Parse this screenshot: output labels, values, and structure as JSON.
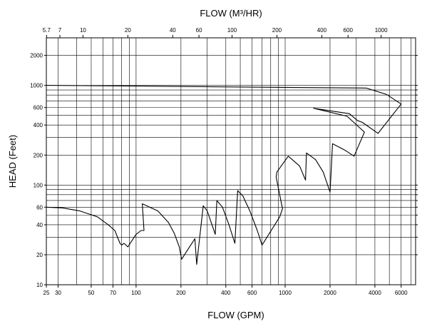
{
  "chart_data": {
    "type": "line",
    "title": "",
    "x_top_label": "FLOW (M³/HR)",
    "x_bottom_label": "FLOW (GPM)",
    "y_label": "HEAD (Feet)",
    "x_scale": "log",
    "y_scale": "log",
    "xlim": [
      25,
      7500
    ],
    "ylim": [
      10,
      3000
    ],
    "grid": true,
    "bottom_ticks": [
      "25",
      "30",
      "50",
      "70",
      "100",
      "200",
      "400",
      "600",
      "1000",
      "2000",
      "4000",
      "6000"
    ],
    "bottom_tick_values": [
      25,
      30,
      50,
      70,
      100,
      200,
      400,
      600,
      1000,
      2000,
      4000,
      6000
    ],
    "top_ticks": [
      "5.7",
      "7",
      "10",
      "20",
      "40",
      "60",
      "100",
      "200",
      "400",
      "600",
      "1000"
    ],
    "top_tick_values": [
      5.7,
      7,
      10,
      20,
      40,
      60,
      100,
      200,
      400,
      600,
      1000
    ],
    "left_ticks": [
      "10",
      "20",
      "40",
      "60",
      "100",
      "200",
      "400",
      "600",
      "1000",
      "2000"
    ],
    "left_tick_values": [
      10,
      20,
      40,
      60,
      100,
      200,
      400,
      600,
      1000,
      2000
    ],
    "series": [
      {
        "values": [
          [
            25,
            60
          ],
          [
            32,
            59
          ],
          [
            42,
            55
          ],
          [
            55,
            48
          ],
          [
            65,
            40
          ],
          [
            72,
            35
          ],
          [
            78,
            26
          ],
          [
            80,
            25
          ],
          [
            83,
            26
          ],
          [
            88,
            24
          ],
          [
            100,
            32
          ],
          [
            108,
            35
          ],
          [
            113,
            35
          ],
          [
            110,
            65
          ],
          [
            140,
            55
          ],
          [
            165,
            42
          ],
          [
            180,
            33
          ],
          [
            195,
            24
          ],
          [
            202,
            18
          ],
          [
            220,
            22
          ],
          [
            248,
            29
          ],
          [
            255,
            16
          ],
          [
            282,
            62
          ],
          [
            300,
            55
          ],
          [
            340,
            32
          ],
          [
            348,
            70
          ],
          [
            380,
            60
          ],
          [
            420,
            40
          ],
          [
            460,
            26
          ],
          [
            480,
            88
          ],
          [
            520,
            78
          ],
          [
            580,
            55
          ],
          [
            650,
            35
          ],
          [
            700,
            25
          ],
          [
            920,
            48
          ],
          [
            960,
            58
          ],
          [
            870,
            120
          ],
          [
            880,
            135
          ],
          [
            1050,
            195
          ],
          [
            1250,
            155
          ],
          [
            1370,
            112
          ],
          [
            1390,
            210
          ],
          [
            1600,
            180
          ],
          [
            1800,
            135
          ],
          [
            2000,
            85
          ],
          [
            2080,
            260
          ],
          [
            2500,
            225
          ],
          [
            2900,
            195
          ],
          [
            3400,
            340
          ],
          [
            3050,
            395
          ],
          [
            2600,
            490
          ],
          [
            1550,
            590
          ],
          [
            2700,
            520
          ],
          [
            3050,
            445
          ],
          [
            3300,
            425
          ],
          [
            4200,
            330
          ],
          [
            6000,
            650
          ],
          [
            4800,
            810
          ],
          [
            3500,
            940
          ],
          [
            25,
            1000
          ]
        ]
      }
    ]
  }
}
